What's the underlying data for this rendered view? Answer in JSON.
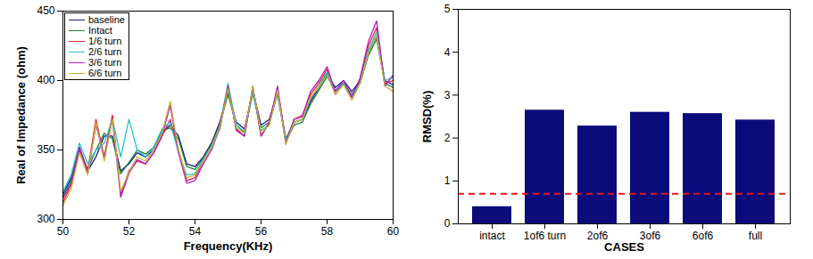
{
  "chart_data": [
    {
      "type": "line",
      "xlabel": "Frequency(KHz)",
      "ylabel": "Real of Impedance (ohm)",
      "x": [
        50,
        50.25,
        50.5,
        50.75,
        51,
        51.25,
        51.5,
        51.75,
        52,
        52.25,
        52.5,
        52.75,
        53,
        53.25,
        53.5,
        53.75,
        54,
        54.25,
        54.5,
        54.75,
        55,
        55.25,
        55.5,
        55.75,
        56,
        56.25,
        56.5,
        56.75,
        57,
        57.25,
        57.5,
        57.75,
        58,
        58.25,
        58.5,
        58.75,
        59,
        59.25,
        59.5,
        59.75,
        60
      ],
      "xlim": [
        50,
        60
      ],
      "xticks": [
        50,
        52,
        54,
        56,
        58,
        60
      ],
      "ylim": [
        300,
        450
      ],
      "yticks": [
        300,
        350,
        400,
        450
      ],
      "legend": "top-left",
      "series": [
        {
          "name": "baseline",
          "color": "#1a1a8c",
          "values": [
            318,
            330,
            352,
            335,
            345,
            360,
            360,
            335,
            340,
            348,
            345,
            350,
            362,
            368,
            360,
            340,
            338,
            345,
            355,
            370,
            392,
            370,
            365,
            393,
            368,
            372,
            392,
            358,
            370,
            372,
            385,
            395,
            405,
            395,
            400,
            392,
            400,
            420,
            432,
            400,
            397
          ]
        },
        {
          "name": "Intact",
          "color": "#1f7a3a",
          "values": [
            316,
            328,
            350,
            336,
            350,
            362,
            358,
            333,
            341,
            350,
            347,
            352,
            364,
            366,
            358,
            338,
            336,
            344,
            354,
            368,
            390,
            368,
            363,
            391,
            366,
            370,
            390,
            356,
            368,
            370,
            383,
            393,
            403,
            393,
            398,
            390,
            398,
            418,
            430,
            398,
            395
          ]
        },
        {
          "name": "1/6 turn",
          "color": "#e0202a",
          "values": [
            312,
            325,
            350,
            335,
            372,
            345,
            375,
            318,
            335,
            342,
            340,
            348,
            360,
            372,
            350,
            328,
            330,
            342,
            352,
            365,
            395,
            365,
            360,
            395,
            360,
            370,
            395,
            355,
            372,
            375,
            390,
            398,
            408,
            390,
            398,
            388,
            400,
            425,
            438,
            398,
            400
          ]
        },
        {
          "name": "2/6 turn",
          "color": "#22c4c4",
          "values": [
            320,
            332,
            355,
            340,
            350,
            355,
            372,
            345,
            372,
            350,
            345,
            352,
            365,
            370,
            348,
            332,
            333,
            343,
            353,
            367,
            398,
            368,
            362,
            392,
            364,
            368,
            392,
            357,
            370,
            372,
            387,
            396,
            406,
            392,
            398,
            389,
            398,
            422,
            435,
            400,
            402
          ]
        },
        {
          "name": "3/6 turn",
          "color": "#b01ec8",
          "values": [
            315,
            326,
            352,
            333,
            368,
            345,
            372,
            316,
            333,
            343,
            340,
            348,
            360,
            382,
            348,
            326,
            328,
            340,
            350,
            366,
            396,
            364,
            360,
            396,
            360,
            369,
            396,
            355,
            372,
            374,
            392,
            400,
            410,
            392,
            400,
            388,
            402,
            428,
            443,
            396,
            404
          ]
        },
        {
          "name": "6/6 turn",
          "color": "#c9b035",
          "values": [
            310,
            322,
            348,
            332,
            370,
            342,
            372,
            320,
            334,
            345,
            342,
            350,
            362,
            385,
            350,
            330,
            332,
            342,
            352,
            366,
            394,
            366,
            362,
            396,
            362,
            368,
            393,
            354,
            370,
            372,
            388,
            395,
            404,
            390,
            397,
            386,
            398,
            420,
            432,
            396,
            392
          ]
        }
      ]
    },
    {
      "type": "bar",
      "xlabel": "CASES",
      "ylabel": "RMSD(%)",
      "categories": [
        "intact",
        "1of6 turn",
        "2of6",
        "3of6",
        "6of6",
        "full"
      ],
      "values": [
        0.4,
        2.65,
        2.28,
        2.6,
        2.57,
        2.42
      ],
      "color": "#0b0b7a",
      "ylim": [
        0,
        5
      ],
      "yticks": [
        0,
        1,
        2,
        3,
        4,
        5
      ],
      "reference_line": {
        "value": 0.7,
        "color": "#e8141e",
        "line_style": "dashed"
      }
    }
  ]
}
